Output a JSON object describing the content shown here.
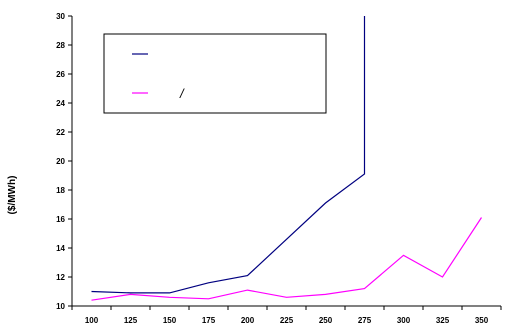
{
  "chart_data": {
    "type": "line",
    "title": "",
    "xlabel": "",
    "ylabel": "($/MWh)",
    "x": [
      100,
      125,
      150,
      175,
      200,
      225,
      250,
      275,
      300,
      325,
      350
    ],
    "ylim": [
      10,
      30
    ],
    "yticks": [
      10,
      12,
      14,
      16,
      18,
      20,
      22,
      24,
      26,
      28,
      30
    ],
    "grid": false,
    "legend_position": "top-left",
    "series": [
      {
        "name": "",
        "color": "#000080",
        "x": [
          100,
          125,
          150,
          175,
          200,
          225,
          250,
          275,
          275
        ],
        "y": [
          11.0,
          10.9,
          10.9,
          11.6,
          12.1,
          14.6,
          17.1,
          19.1,
          30.0
        ]
      },
      {
        "name": "/",
        "color": "#ff00ff",
        "x": [
          100,
          125,
          150,
          175,
          200,
          225,
          250,
          275,
          300,
          325,
          350
        ],
        "y": [
          10.4,
          10.8,
          10.6,
          10.5,
          11.1,
          10.6,
          10.8,
          11.2,
          13.5,
          12.0,
          16.1
        ]
      }
    ]
  }
}
